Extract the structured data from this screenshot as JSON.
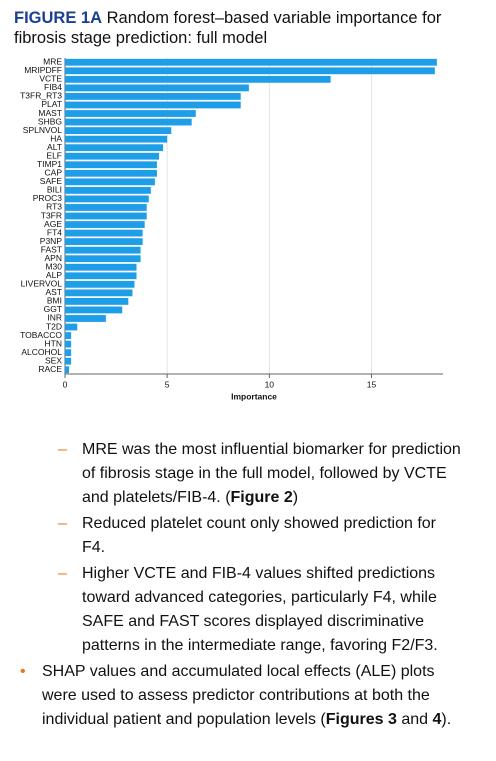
{
  "header": {
    "label": "FIGURE 1A",
    "title": "Random forest–based variable importance for fibrosis stage prediction: full model"
  },
  "chart_data": {
    "type": "barh",
    "categories": [
      "MRE",
      "MRIPDFF",
      "VCTE",
      "FIB4",
      "T3FR_RT3",
      "PLAT",
      "MAST",
      "SHBG",
      "SPLNVOL",
      "HA",
      "ALT",
      "ELF",
      "TIMP1",
      "CAP",
      "SAFE",
      "BILI",
      "PROC3",
      "RT3",
      "T3FR",
      "AGE",
      "FT4",
      "P3NP",
      "FAST",
      "APN",
      "M30",
      "ALP",
      "LIVERVOL",
      "AST",
      "BMI",
      "GGT",
      "INR",
      "T2D",
      "TOBACCO",
      "HTN",
      "ALCOHOL",
      "SEX",
      "RACE"
    ],
    "values": [
      18.2,
      18.1,
      13.0,
      9.0,
      8.6,
      8.6,
      6.4,
      6.2,
      5.2,
      5.0,
      4.8,
      4.6,
      4.5,
      4.5,
      4.4,
      4.2,
      4.1,
      4.0,
      4.0,
      3.9,
      3.8,
      3.8,
      3.7,
      3.7,
      3.5,
      3.5,
      3.4,
      3.3,
      3.1,
      2.8,
      2.0,
      0.6,
      0.3,
      0.3,
      0.3,
      0.3,
      0.2
    ],
    "color": "#1f9ee8",
    "xlabel": "Importance",
    "xlim": [
      0,
      18.5
    ],
    "xticks": [
      0,
      5,
      10,
      15
    ],
    "grid": true
  },
  "document": {
    "sub_bullets": [
      [
        {
          "text": "MRE was the most influential biomarker for prediction of fibrosis stage in the full model, followed by VCTE and platelets/FIB-4. (",
          "bold": false
        },
        {
          "text": "Figure 2",
          "bold": true
        },
        {
          "text": ")",
          "bold": false
        }
      ],
      [
        {
          "text": "Reduced platelet count only showed prediction for F4.",
          "bold": false
        }
      ],
      [
        {
          "text": "Higher VCTE and FIB-4 values shifted predictions toward advanced categories, particularly F4, while SAFE and FAST scores displayed discriminative patterns in the intermediate range, favoring F2/F3.",
          "bold": false
        }
      ]
    ],
    "bullets": [
      [
        {
          "text": "SHAP values and accumulated local effects (ALE) plots were used to assess predictor contributions at both the individual patient and population levels (",
          "bold": false
        },
        {
          "text": "Figures 3",
          "bold": true
        },
        {
          "text": " and ",
          "bold": false
        },
        {
          "text": "4",
          "bold": true
        },
        {
          "text": ").",
          "bold": false
        }
      ]
    ]
  }
}
